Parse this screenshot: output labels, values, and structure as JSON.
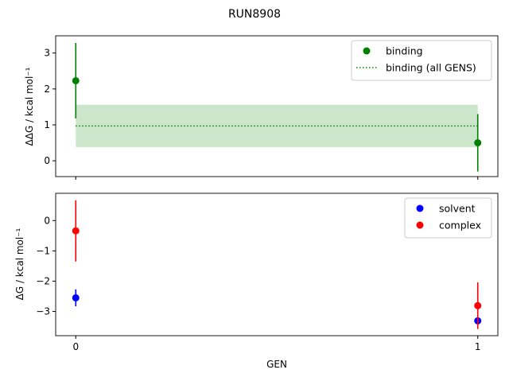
{
  "chart_data": [
    {
      "type": "scatter",
      "title": "RUN8908",
      "xlabel": "",
      "ylabel": "ΔΔG / kcal mol⁻¹",
      "xlim": [
        -0.05,
        1.05
      ],
      "ylim": [
        -0.44,
        3.48
      ],
      "xticks": [
        0,
        1
      ],
      "yticks": [
        0,
        1,
        2,
        3
      ],
      "legend_position": "top-right",
      "series": [
        {
          "name": "binding",
          "color": "#008000",
          "x": [
            0,
            1
          ],
          "y": [
            2.23,
            0.5
          ],
          "yerr": [
            1.05,
            0.8
          ]
        }
      ],
      "band": {
        "name": "binding (all GENS)",
        "color": "#008000",
        "value": 0.97,
        "lower": 0.38,
        "upper": 1.56,
        "x_range": [
          0,
          1
        ]
      }
    },
    {
      "type": "scatter",
      "xlabel": "GEN",
      "ylabel": "ΔG / kcal mol⁻¹",
      "xlim": [
        -0.05,
        1.05
      ],
      "ylim": [
        -3.8,
        0.9
      ],
      "xticks": [
        0,
        1
      ],
      "yticks": [
        0,
        -1,
        -2,
        -3
      ],
      "legend_position": "top-right",
      "series": [
        {
          "name": "solvent",
          "color": "#0000ff",
          "x": [
            0,
            1
          ],
          "y": [
            -2.55,
            -3.31
          ],
          "yerr": [
            0.28,
            0.15
          ]
        },
        {
          "name": "complex",
          "color": "#ff0000",
          "x": [
            0,
            1
          ],
          "y": [
            -0.34,
            -2.81
          ],
          "yerr": [
            1.01,
            0.77
          ]
        }
      ]
    }
  ]
}
